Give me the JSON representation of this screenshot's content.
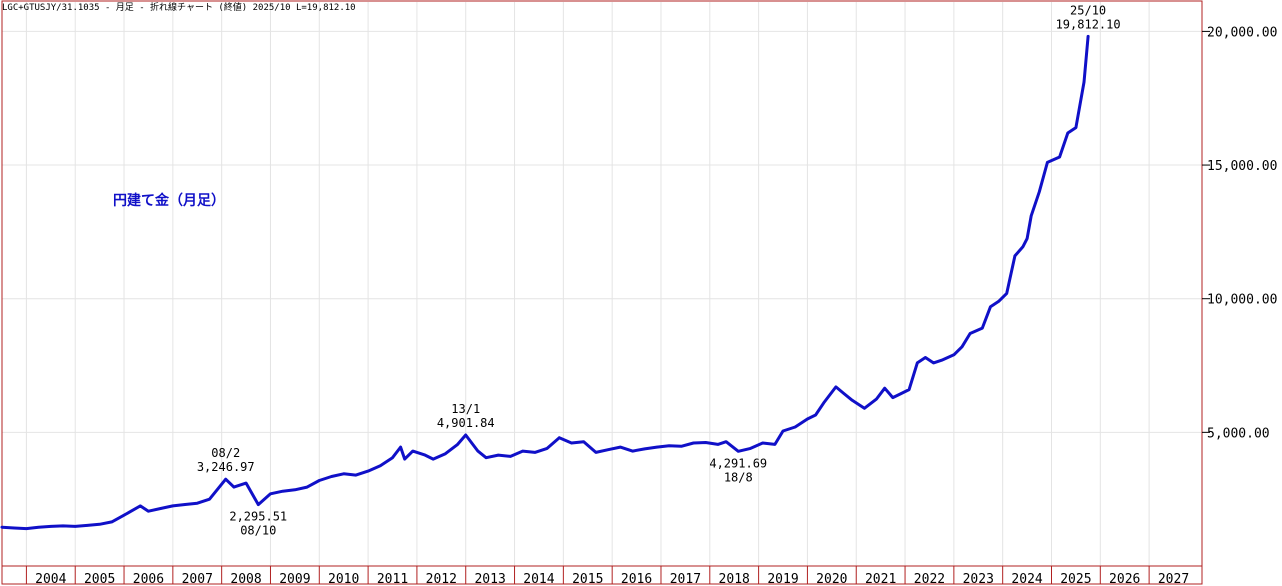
{
  "header": "LGC+GTUSJY/31.1035 - 月足 - 折れ線チャート (終値) 2025/10 L=19,812.10",
  "chart_title": "円建て金（月足）",
  "chart_data": {
    "type": "line",
    "x_unit": "month",
    "xlim": [
      "2003-07",
      "2028-02"
    ],
    "ylim": [
      0,
      21100
    ],
    "y_ticks": [
      5000,
      10000,
      15000,
      20000
    ],
    "y_tick_labels": [
      "5,000.00",
      "10,000.00",
      "15,000.00",
      "20,000.00"
    ],
    "x_tick_labels": [
      "2004",
      "2005",
      "2006",
      "2007",
      "2008",
      "2009",
      "2010",
      "2011",
      "2012",
      "2013",
      "2014",
      "2015",
      "2016",
      "2017",
      "2018",
      "2019",
      "2020",
      "2021",
      "2022",
      "2023",
      "2024",
      "2025",
      "2026",
      "2027"
    ],
    "grid": true,
    "colors": {
      "line": "#1010c8",
      "frame": "#b02020",
      "grid": "#e4e4e4",
      "label": "#1010c8"
    },
    "series": [
      {
        "points": [
          [
            "2003-07",
            1450
          ],
          [
            "2003-10",
            1420
          ],
          [
            "2004-01",
            1400
          ],
          [
            "2004-04",
            1450
          ],
          [
            "2004-07",
            1480
          ],
          [
            "2004-10",
            1500
          ],
          [
            "2005-01",
            1480
          ],
          [
            "2005-04",
            1520
          ],
          [
            "2005-07",
            1560
          ],
          [
            "2005-10",
            1650
          ],
          [
            "2006-01",
            1900
          ],
          [
            "2006-05",
            2250
          ],
          [
            "2006-07",
            2050
          ],
          [
            "2006-10",
            2150
          ],
          [
            "2007-01",
            2250
          ],
          [
            "2007-04",
            2300
          ],
          [
            "2007-07",
            2350
          ],
          [
            "2007-10",
            2500
          ],
          [
            "2008-02",
            3246.97
          ],
          [
            "2008-04",
            2950
          ],
          [
            "2008-07",
            3100
          ],
          [
            "2008-10",
            2295.51
          ],
          [
            "2009-01",
            2700
          ],
          [
            "2009-04",
            2800
          ],
          [
            "2009-07",
            2850
          ],
          [
            "2009-10",
            2950
          ],
          [
            "2010-01",
            3200
          ],
          [
            "2010-04",
            3350
          ],
          [
            "2010-07",
            3450
          ],
          [
            "2010-10",
            3400
          ],
          [
            "2011-01",
            3550
          ],
          [
            "2011-04",
            3750
          ],
          [
            "2011-07",
            4050
          ],
          [
            "2011-09",
            4450
          ],
          [
            "2011-10",
            4000
          ],
          [
            "2011-12",
            4300
          ],
          [
            "2012-03",
            4150
          ],
          [
            "2012-05",
            4000
          ],
          [
            "2012-08",
            4200
          ],
          [
            "2012-11",
            4550
          ],
          [
            "2013-01",
            4901.84
          ],
          [
            "2013-04",
            4300
          ],
          [
            "2013-06",
            4050
          ],
          [
            "2013-09",
            4150
          ],
          [
            "2013-12",
            4100
          ],
          [
            "2014-03",
            4300
          ],
          [
            "2014-06",
            4250
          ],
          [
            "2014-09",
            4400
          ],
          [
            "2014-12",
            4800
          ],
          [
            "2015-03",
            4600
          ],
          [
            "2015-06",
            4650
          ],
          [
            "2015-09",
            4250
          ],
          [
            "2015-12",
            4350
          ],
          [
            "2016-03",
            4450
          ],
          [
            "2016-06",
            4300
          ],
          [
            "2016-09",
            4380
          ],
          [
            "2016-12",
            4450
          ],
          [
            "2017-03",
            4500
          ],
          [
            "2017-06",
            4480
          ],
          [
            "2017-09",
            4600
          ],
          [
            "2017-12",
            4620
          ],
          [
            "2018-03",
            4550
          ],
          [
            "2018-05",
            4650
          ],
          [
            "2018-08",
            4291.69
          ],
          [
            "2018-11",
            4400
          ],
          [
            "2019-02",
            4600
          ],
          [
            "2019-05",
            4550
          ],
          [
            "2019-07",
            5050
          ],
          [
            "2019-10",
            5200
          ],
          [
            "2020-01",
            5500
          ],
          [
            "2020-03",
            5650
          ],
          [
            "2020-05",
            6100
          ],
          [
            "2020-08",
            6700
          ],
          [
            "2020-10",
            6450
          ],
          [
            "2020-12",
            6200
          ],
          [
            "2021-03",
            5900
          ],
          [
            "2021-06",
            6250
          ],
          [
            "2021-08",
            6650
          ],
          [
            "2021-10",
            6300
          ],
          [
            "2021-12",
            6450
          ],
          [
            "2022-02",
            6600
          ],
          [
            "2022-04",
            7600
          ],
          [
            "2022-06",
            7800
          ],
          [
            "2022-08",
            7600
          ],
          [
            "2022-10",
            7700
          ],
          [
            "2023-01",
            7900
          ],
          [
            "2023-03",
            8200
          ],
          [
            "2023-05",
            8700
          ],
          [
            "2023-08",
            8900
          ],
          [
            "2023-10",
            9700
          ],
          [
            "2023-12",
            9900
          ],
          [
            "2024-02",
            10200
          ],
          [
            "2024-04",
            11600
          ],
          [
            "2024-06",
            11950
          ],
          [
            "2024-07",
            12250
          ],
          [
            "2024-08",
            13100
          ],
          [
            "2024-10",
            14000
          ],
          [
            "2024-12",
            15100
          ],
          [
            "2025-03",
            15300
          ],
          [
            "2025-05",
            16200
          ],
          [
            "2025-07",
            16400
          ],
          [
            "2025-09",
            18100
          ],
          [
            "2025-10",
            19812.1
          ]
        ]
      }
    ],
    "annotations": [
      {
        "date": "2008-02",
        "value": 3246.97,
        "label1": "08/2",
        "label2": "3,246.97",
        "pos": "above"
      },
      {
        "date": "2008-10",
        "value": 2295.51,
        "label1": "2,295.51",
        "label2": "08/10",
        "pos": "below"
      },
      {
        "date": "2013-01",
        "value": 4901.84,
        "label1": "13/1",
        "label2": "4,901.84",
        "pos": "above"
      },
      {
        "date": "2018-08",
        "value": 4291.69,
        "label1": "4,291.69",
        "label2": "18/8",
        "pos": "below"
      },
      {
        "date": "2025-10",
        "value": 19812.1,
        "label1": "25/10",
        "label2": "19,812.10",
        "pos": "above"
      }
    ]
  }
}
